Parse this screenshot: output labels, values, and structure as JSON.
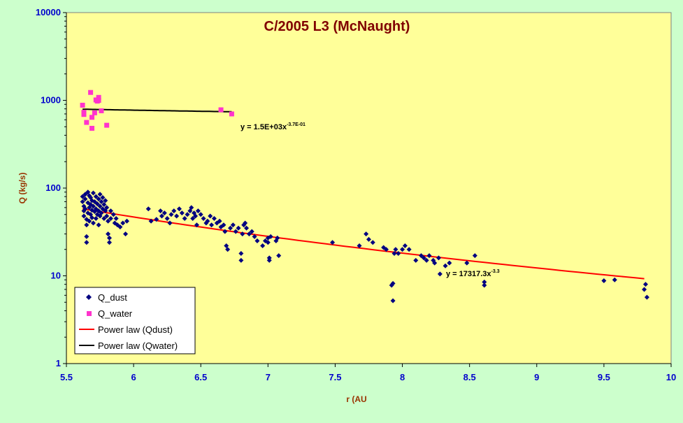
{
  "chart_data": {
    "type": "scatter",
    "title": "C/2005 L3 (McNaught)",
    "xlabel": "r (AU",
    "ylabel": "Q (kg/s)",
    "xlim": [
      5.5,
      10
    ],
    "ylim": [
      1,
      10000
    ],
    "y_scale": "log",
    "x_ticks": [
      "5.5",
      "6",
      "6.5",
      "7",
      "7.5",
      "8",
      "8.5",
      "9",
      "9.5",
      "10"
    ],
    "y_ticks": [
      "1",
      "10",
      "100",
      "1000",
      "10000"
    ],
    "grid": false,
    "legend_position": "bottom-left",
    "colors": {
      "page_bg": "#ccffcc",
      "plot_bg": "#ffff99",
      "dust": "#000080",
      "water": "#ff33cc",
      "fit_dust": "#ff0000",
      "fit_water": "#000000"
    },
    "series": [
      {
        "name": "Q_dust",
        "marker": "diamond",
        "points": [
          [
            5.62,
            80
          ],
          [
            5.62,
            70
          ],
          [
            5.63,
            62
          ],
          [
            5.63,
            55
          ],
          [
            5.63,
            48
          ],
          [
            5.64,
            85
          ],
          [
            5.64,
            75
          ],
          [
            5.64,
            58
          ],
          [
            5.65,
            44
          ],
          [
            5.65,
            38
          ],
          [
            5.65,
            28
          ],
          [
            5.65,
            24
          ],
          [
            5.66,
            90
          ],
          [
            5.66,
            68
          ],
          [
            5.66,
            52
          ],
          [
            5.67,
            82
          ],
          [
            5.67,
            60
          ],
          [
            5.67,
            42
          ],
          [
            5.68,
            78
          ],
          [
            5.68,
            65
          ],
          [
            5.68,
            50
          ],
          [
            5.69,
            72
          ],
          [
            5.69,
            56
          ],
          [
            5.69,
            46
          ],
          [
            5.7,
            88
          ],
          [
            5.7,
            62
          ],
          [
            5.7,
            40
          ],
          [
            5.71,
            70
          ],
          [
            5.71,
            54
          ],
          [
            5.72,
            80
          ],
          [
            5.72,
            58
          ],
          [
            5.72,
            45
          ],
          [
            5.73,
            66
          ],
          [
            5.73,
            50
          ],
          [
            5.74,
            75
          ],
          [
            5.74,
            55
          ],
          [
            5.74,
            38
          ],
          [
            5.75,
            85
          ],
          [
            5.75,
            62
          ],
          [
            5.75,
            48
          ],
          [
            5.76,
            70
          ],
          [
            5.76,
            52
          ],
          [
            5.77,
            78
          ],
          [
            5.77,
            58
          ],
          [
            5.78,
            65
          ],
          [
            5.78,
            45
          ],
          [
            5.79,
            72
          ],
          [
            5.79,
            55
          ],
          [
            5.8,
            60
          ],
          [
            5.8,
            48
          ],
          [
            5.81,
            42
          ],
          [
            5.81,
            30
          ],
          [
            5.82,
            27
          ],
          [
            5.82,
            24
          ],
          [
            5.83,
            55
          ],
          [
            5.83,
            45
          ],
          [
            5.85,
            50
          ],
          [
            5.86,
            40
          ],
          [
            5.87,
            45
          ],
          [
            5.88,
            38
          ],
          [
            5.9,
            36
          ],
          [
            5.92,
            40
          ],
          [
            5.94,
            30
          ],
          [
            5.95,
            42
          ],
          [
            6.11,
            58
          ],
          [
            6.13,
            42
          ],
          [
            6.17,
            44
          ],
          [
            6.2,
            55
          ],
          [
            6.21,
            48
          ],
          [
            6.23,
            52
          ],
          [
            6.25,
            45
          ],
          [
            6.27,
            40
          ],
          [
            6.28,
            50
          ],
          [
            6.3,
            55
          ],
          [
            6.32,
            48
          ],
          [
            6.34,
            58
          ],
          [
            6.36,
            52
          ],
          [
            6.38,
            45
          ],
          [
            6.4,
            50
          ],
          [
            6.42,
            55
          ],
          [
            6.43,
            60
          ],
          [
            6.44,
            45
          ],
          [
            6.45,
            52
          ],
          [
            6.46,
            48
          ],
          [
            6.47,
            38
          ],
          [
            6.48,
            55
          ],
          [
            6.5,
            50
          ],
          [
            6.52,
            45
          ],
          [
            6.54,
            40
          ],
          [
            6.55,
            42
          ],
          [
            6.57,
            48
          ],
          [
            6.58,
            38
          ],
          [
            6.6,
            45
          ],
          [
            6.62,
            40
          ],
          [
            6.64,
            42
          ],
          [
            6.65,
            36
          ],
          [
            6.67,
            38
          ],
          [
            6.68,
            32
          ],
          [
            6.69,
            22
          ],
          [
            6.7,
            20
          ],
          [
            6.72,
            35
          ],
          [
            6.74,
            38
          ],
          [
            6.76,
            32
          ],
          [
            6.78,
            35
          ],
          [
            6.8,
            18
          ],
          [
            6.8,
            15
          ],
          [
            6.81,
            30
          ],
          [
            6.82,
            38
          ],
          [
            6.83,
            40
          ],
          [
            6.84,
            35
          ],
          [
            6.86,
            30
          ],
          [
            6.88,
            32
          ],
          [
            6.9,
            28
          ],
          [
            6.92,
            25
          ],
          [
            6.96,
            22
          ],
          [
            6.98,
            25
          ],
          [
            7.0,
            27
          ],
          [
            7.0,
            24
          ],
          [
            7.01,
            16
          ],
          [
            7.01,
            15
          ],
          [
            7.02,
            28
          ],
          [
            7.06,
            25
          ],
          [
            7.07,
            27
          ],
          [
            7.08,
            17
          ],
          [
            7.48,
            24
          ],
          [
            7.68,
            22
          ],
          [
            7.73,
            30
          ],
          [
            7.75,
            26
          ],
          [
            7.78,
            24
          ],
          [
            7.86,
            21
          ],
          [
            7.88,
            20
          ],
          [
            7.92,
            7.8
          ],
          [
            7.93,
            8.2
          ],
          [
            7.93,
            5.2
          ],
          [
            7.94,
            18
          ],
          [
            7.95,
            20
          ],
          [
            7.97,
            18
          ],
          [
            8.0,
            20
          ],
          [
            8.02,
            22
          ],
          [
            8.05,
            20
          ],
          [
            8.1,
            15
          ],
          [
            8.14,
            17
          ],
          [
            8.16,
            16
          ],
          [
            8.18,
            15
          ],
          [
            8.2,
            17
          ],
          [
            8.23,
            15
          ],
          [
            8.24,
            14
          ],
          [
            8.27,
            16
          ],
          [
            8.28,
            10.5
          ],
          [
            8.32,
            13
          ],
          [
            8.35,
            14
          ],
          [
            8.48,
            14
          ],
          [
            8.54,
            17
          ],
          [
            8.61,
            8.5
          ],
          [
            8.61,
            7.8
          ],
          [
            9.5,
            8.8
          ],
          [
            9.58,
            9
          ],
          [
            9.8,
            7
          ],
          [
            9.81,
            8
          ],
          [
            9.82,
            5.7
          ]
        ]
      },
      {
        "name": "Q_water",
        "marker": "square",
        "points": [
          [
            5.62,
            880
          ],
          [
            5.63,
            730
          ],
          [
            5.63,
            690
          ],
          [
            5.65,
            560
          ],
          [
            5.68,
            1230
          ],
          [
            5.69,
            640
          ],
          [
            5.69,
            480
          ],
          [
            5.71,
            720
          ],
          [
            5.72,
            1010
          ],
          [
            5.73,
            980
          ],
          [
            5.74,
            1080
          ],
          [
            5.74,
            1000
          ],
          [
            5.76,
            760
          ],
          [
            5.8,
            520
          ],
          [
            6.65,
            780
          ],
          [
            6.73,
            700
          ]
        ]
      }
    ],
    "fits": [
      {
        "name": "Power law (Qdust)",
        "coefficient": 17317.3,
        "exponent": -3.3,
        "x_range": [
          5.62,
          9.8
        ],
        "equation_text": "y = 17317.3x",
        "equation_exponent": "-3.3"
      },
      {
        "name": "Power law (Qwater)",
        "coefficient": 1500,
        "exponent": -0.37,
        "x_range": [
          5.62,
          6.73
        ],
        "equation_text": "y = 1.5E+03x",
        "equation_exponent": "-3.7E-01"
      }
    ]
  }
}
